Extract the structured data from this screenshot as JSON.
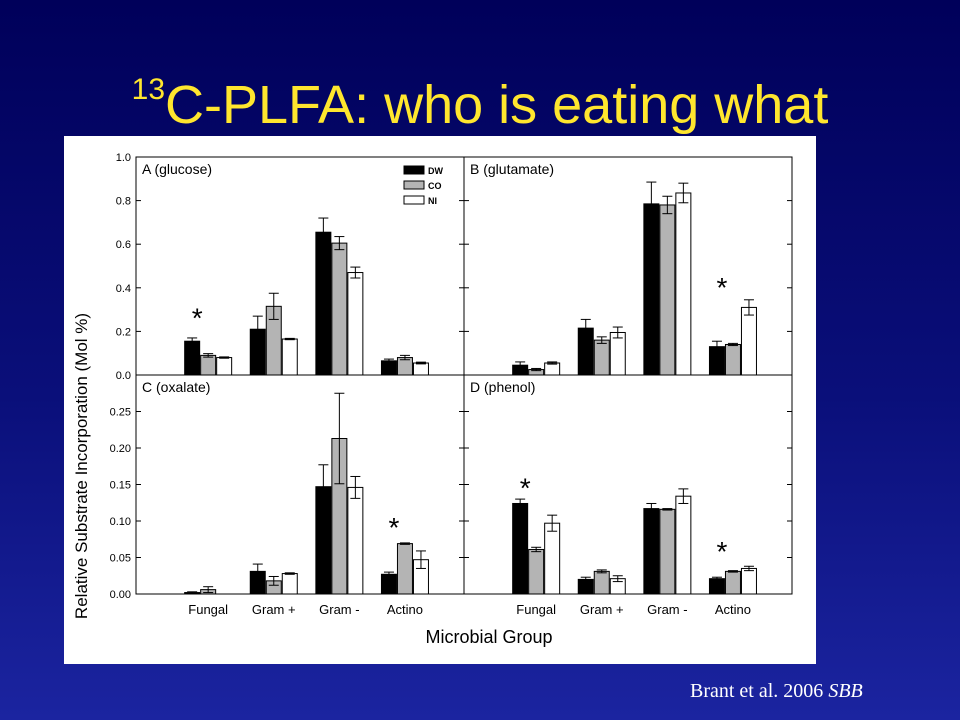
{
  "slide": {
    "title_sup": "13",
    "title_main": "C-PLFA: who is eating what",
    "citation_authors": "Brant et al. 2006",
    "citation_journal": "SBB",
    "colors": {
      "background_top": "#00005a",
      "background_bottom": "#1b24a0",
      "title": "#ffe62e",
      "citation": "#ffffff"
    }
  },
  "chart_data": {
    "type": "bar",
    "ylabel": "Relative Substrate Incorporation (Mol %)",
    "xlabel": "Microbial Group",
    "categories": [
      "Fungal",
      "Gram +",
      "Gram -",
      "Actino"
    ],
    "legend": {
      "placement": "top-right of panel A",
      "entries": [
        {
          "name": "DW",
          "color": "#000000"
        },
        {
          "name": "CO",
          "color": "#b4b4b4"
        },
        {
          "name": "NI",
          "color": "#ffffff"
        }
      ]
    },
    "significance_marker": "*",
    "panels": [
      {
        "label": "A (glucose)",
        "ylim": [
          0,
          1.0
        ],
        "yticks": [
          "0.0",
          "0.2",
          "0.4",
          "0.6",
          "0.8",
          "1.0"
        ],
        "ytick_values": [
          0,
          0.2,
          0.4,
          0.6,
          0.8,
          1.0
        ],
        "series": [
          {
            "name": "DW",
            "values": [
              0.155,
              0.21,
              0.655,
              0.065
            ],
            "errors": [
              0.015,
              0.06,
              0.065,
              0.008
            ]
          },
          {
            "name": "CO",
            "values": [
              0.09,
              0.315,
              0.605,
              0.08
            ],
            "errors": [
              0.008,
              0.06,
              0.03,
              0.01
            ]
          },
          {
            "name": "NI",
            "values": [
              0.08,
              0.165,
              0.47,
              0.055
            ],
            "errors": [
              0.003,
              0.003,
              0.025,
              0.004
            ]
          }
        ],
        "markers": [
          {
            "category": "Fungal",
            "value": 0.3
          }
        ]
      },
      {
        "label": "B (glutamate)",
        "ylim": [
          0,
          1.0
        ],
        "yticks": [],
        "ytick_values": [
          0,
          0.2,
          0.4,
          0.6,
          0.8,
          1.0
        ],
        "series": [
          {
            "name": "DW",
            "values": [
              0.045,
              0.215,
              0.785,
              0.13
            ],
            "errors": [
              0.015,
              0.04,
              0.1,
              0.025
            ]
          },
          {
            "name": "CO",
            "values": [
              0.025,
              0.16,
              0.78,
              0.14
            ],
            "errors": [
              0.005,
              0.015,
              0.04,
              0.005
            ]
          },
          {
            "name": "NI",
            "values": [
              0.055,
              0.195,
              0.835,
              0.31
            ],
            "errors": [
              0.005,
              0.025,
              0.045,
              0.035
            ]
          }
        ],
        "markers": [
          {
            "category": "Actino",
            "value": 0.44
          }
        ]
      },
      {
        "label": "C (oxalate)",
        "ylim": [
          0,
          0.3
        ],
        "yticks": [
          "0.00",
          "0.05",
          "0.10",
          "0.15",
          "0.20",
          "0.25"
        ],
        "ytick_values": [
          0,
          0.05,
          0.1,
          0.15,
          0.2,
          0.25
        ],
        "series": [
          {
            "name": "DW",
            "values": [
              0.002,
              0.031,
              0.147,
              0.027
            ],
            "errors": [
              0.001,
              0.01,
              0.03,
              0.003
            ]
          },
          {
            "name": "CO",
            "values": [
              0.006,
              0.018,
              0.213,
              0.069
            ],
            "errors": [
              0.004,
              0.006,
              0.062,
              0.001
            ]
          },
          {
            "name": "NI",
            "values": [
              0,
              0.028,
              0.146,
              0.047
            ],
            "errors": [
              0,
              0.001,
              0.015,
              0.012
            ]
          }
        ],
        "markers": [
          {
            "category": "Actino",
            "value": 0.103
          }
        ]
      },
      {
        "label": "D (phenol)",
        "ylim": [
          0,
          0.3
        ],
        "yticks": [],
        "ytick_values": [
          0,
          0.05,
          0.1,
          0.15,
          0.2,
          0.25
        ],
        "series": [
          {
            "name": "DW",
            "values": [
              0.124,
              0.02,
              0.117,
              0.021
            ],
            "errors": [
              0.006,
              0.003,
              0.007,
              0.002
            ]
          },
          {
            "name": "CO",
            "values": [
              0.061,
              0.031,
              0.116,
              0.031
            ],
            "errors": [
              0.003,
              0.002,
              0.001,
              0.001
            ]
          },
          {
            "name": "NI",
            "values": [
              0.097,
              0.021,
              0.134,
              0.035
            ],
            "errors": [
              0.011,
              0.004,
              0.01,
              0.003
            ]
          }
        ],
        "markers": [
          {
            "category": "Fungal",
            "value": 0.157
          },
          {
            "category": "Actino",
            "value": 0.07
          }
        ]
      }
    ]
  }
}
